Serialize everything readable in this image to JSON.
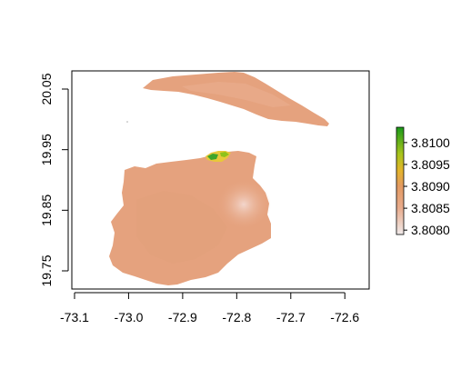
{
  "map": {
    "x_ticks": [
      "-73.1",
      "-73.0",
      "-72.9",
      "-72.8",
      "-72.7",
      "-72.6"
    ],
    "y_ticks": [
      "19.75",
      "19.85",
      "19.95",
      "20.05"
    ],
    "x_tick_values": [
      -73.1,
      -73.0,
      -72.9,
      -72.8,
      -72.7,
      -72.6
    ],
    "y_tick_values": [
      19.75,
      19.85,
      19.95,
      20.05
    ],
    "x_range": [
      -73.105,
      -72.555
    ],
    "y_range": [
      19.72,
      20.08
    ],
    "box": "on",
    "legend": {
      "placement": "right",
      "labels": [
        "3.8100",
        "3.8095",
        "3.8090",
        "3.8085",
        "3.8080"
      ],
      "values": [
        3.81,
        3.8095,
        3.809,
        3.8085,
        3.808
      ],
      "range": [
        3.8079,
        3.81035
      ],
      "colors": {
        "high": "#1a9a1a",
        "mid_high": "#8fc21a",
        "mid": "#e3b52a",
        "mid_low": "#e89c6a",
        "low": "#f0eaea"
      }
    },
    "fill_colors": {
      "base": "#e5a27e",
      "light": "#eec3b4",
      "green": "#4caf2a",
      "yellow": "#e8c83a"
    }
  }
}
